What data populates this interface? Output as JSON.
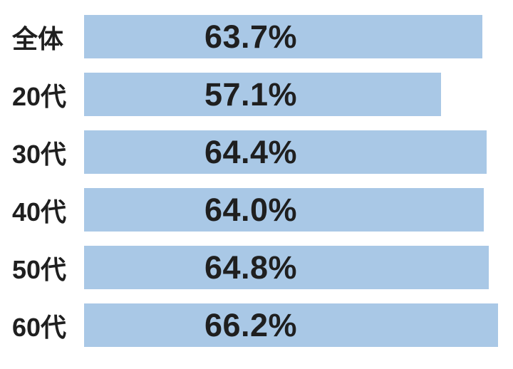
{
  "page": {
    "background_color": "#ffffff"
  },
  "chart_data": {
    "type": "bar",
    "orientation": "horizontal",
    "title": "",
    "xlabel": "",
    "ylabel": "",
    "categories": [
      "全体",
      "20代",
      "30代",
      "40代",
      "50代",
      "60代"
    ],
    "values": [
      63.7,
      57.1,
      64.4,
      64.0,
      64.8,
      66.2
    ],
    "value_labels": [
      "63.7%",
      "57.1%",
      "64.4%",
      "64.0%",
      "64.8%",
      "66.2%"
    ],
    "value_label_position": "inside",
    "xlim": [
      0,
      68.6
    ],
    "grid": false,
    "legend": false,
    "bar_color": "#a9c8e6",
    "text_color": "#1f1f1f"
  }
}
